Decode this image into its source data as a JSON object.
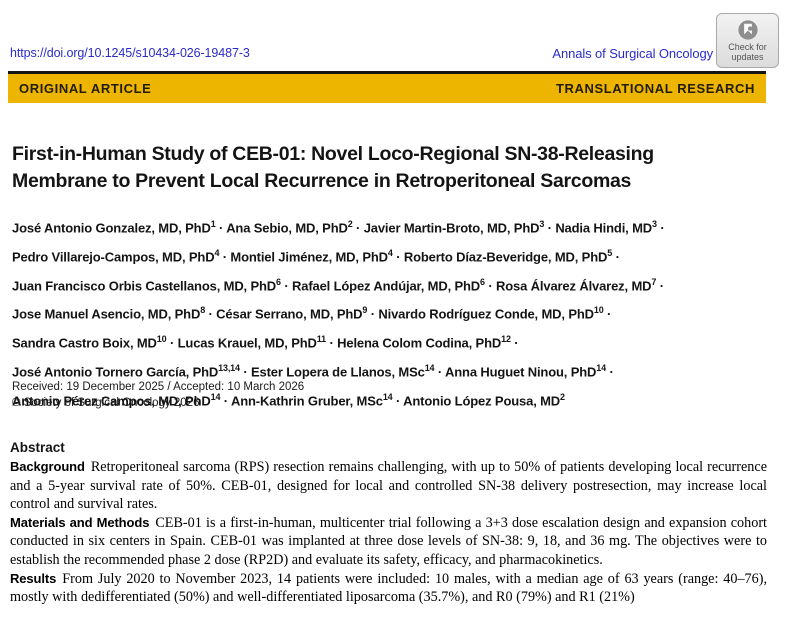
{
  "colors": {
    "banner_yellow": "#edb500",
    "link_blue": "#2b2bc8"
  },
  "header": {
    "doi": "https://doi.org/10.1245/s10434-026-19487-3",
    "journal": "Annals of Surgical Oncology",
    "check_badge_line1": "Check for",
    "check_badge_line2": "updates",
    "banner_left": "ORIGINAL ARTICLE",
    "banner_right": "TRANSLATIONAL RESEARCH"
  },
  "title_lines": {
    "line1": "First-in-Human Study of CEB-01: Novel Loco-Regional SN-38-Releasing",
    "line2": "Membrane to Prevent Local Recurrence in Retroperitoneal Sarcomas"
  },
  "authors": {
    "separator": "·",
    "lines": [
      [
        {
          "name": "José Antonio Gonzalez, MD, PhD",
          "sup": "1"
        },
        {
          "name": "Ana Sebio, MD, PhD",
          "sup": "2"
        },
        {
          "name": "Javier Martin-Broto, MD, PhD",
          "sup": "3"
        },
        {
          "name": "Nadia Hindi, MD",
          "sup": "3"
        }
      ],
      [
        {
          "name": "Pedro Villarejo-Campos, MD, PhD",
          "sup": "4"
        },
        {
          "name": "Montiel Jiménez, MD, PhD",
          "sup": "4"
        },
        {
          "name": "Roberto Díaz-Beveridge, MD, PhD",
          "sup": "5"
        }
      ],
      [
        {
          "name": "Juan Francisco Orbis Castellanos, MD, PhD",
          "sup": "6"
        },
        {
          "name": "Rafael López Andújar, MD, PhD",
          "sup": "6"
        },
        {
          "name": "Rosa Álvarez Álvarez, MD",
          "sup": "7"
        }
      ],
      [
        {
          "name": "Jose Manuel Asencio, MD, PhD",
          "sup": "8"
        },
        {
          "name": "César Serrano, MD, PhD",
          "sup": "9"
        },
        {
          "name": "Nivardo Rodríguez Conde, MD, PhD",
          "sup": "10"
        }
      ],
      [
        {
          "name": "Sandra Castro Boix, MD",
          "sup": "10"
        },
        {
          "name": "Lucas Krauel, MD, PhD",
          "sup": "11"
        },
        {
          "name": "Helena Colom Codina, PhD",
          "sup": "12"
        }
      ],
      [
        {
          "name": "José Antonio Tornero García, PhD",
          "sup": "13,14"
        },
        {
          "name": "Ester Lopera de Llanos, MSc",
          "sup": "14"
        },
        {
          "name": "Anna Huguet Ninou, PhD",
          "sup": "14"
        }
      ],
      [
        {
          "name": "Antonio Pérez Campos, MD, PhD",
          "sup": "14"
        },
        {
          "name": "Ann-Kathrin Gruber, MSc",
          "sup": "14"
        },
        {
          "name": "Antonio López Pousa, MD",
          "sup": "2"
        }
      ]
    ]
  },
  "meta": {
    "received": "Received: 19 December 2025 / Accepted: 10 March 2026",
    "copyright": "© Society of Surgical Oncology 2026"
  },
  "abstract": {
    "heading": "Abstract",
    "sections": [
      {
        "label": "Background",
        "text": "Retroperitoneal sarcoma (RPS) resection remains challenging, with up to 50% of patients developing local recurrence and a 5-year survival rate of 50%. CEB-01, designed for local and controlled SN-38 delivery postresection, may increase local control and survival rates."
      },
      {
        "label": "Materials and Methods",
        "text": "CEB-01 is a first-in-human, multicenter trial following a 3+3 dose escalation design and expansion cohort conducted in six centers in Spain. CEB-01 was implanted at three dose levels of SN-38: 9, 18, and 36 mg. The objectives were to establish the recommended phase 2 dose (RP2D) and evaluate its safety, efficacy, and pharmacokinetics."
      },
      {
        "label": "Results",
        "text": "From July 2020 to November 2023, 14 patients were included: 10 males, with a median age of 63 years (range: 40–76), mostly with dedifferentiated (50%) and well-differentiated liposarcoma (35.7%), and R0 (79%) and R1 (21%)"
      }
    ]
  }
}
